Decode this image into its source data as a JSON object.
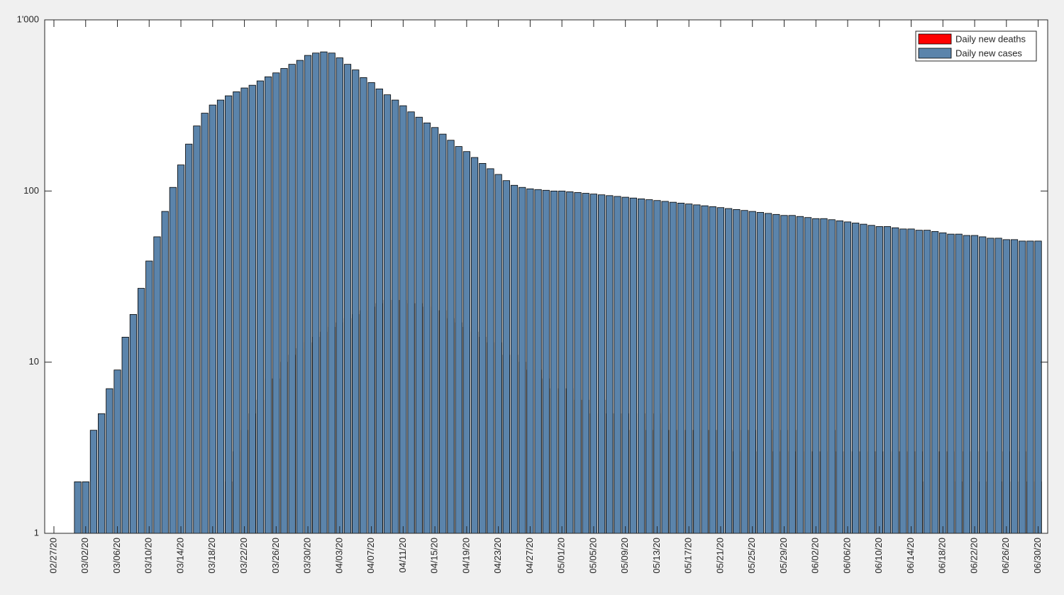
{
  "chart_data": {
    "type": "bar",
    "overlay": true,
    "log_scale_y": true,
    "legend": "northeast",
    "categories": [
      "02/27/20",
      null,
      null,
      null,
      "03/02/20",
      null,
      null,
      null,
      "03/06/20",
      null,
      null,
      null,
      "03/10/20",
      null,
      null,
      null,
      "03/14/20",
      null,
      null,
      null,
      "03/18/20",
      null,
      null,
      null,
      "03/22/20",
      null,
      null,
      null,
      "03/26/20",
      null,
      null,
      null,
      "03/30/20",
      null,
      null,
      null,
      "04/03/20",
      null,
      null,
      null,
      "04/07/20",
      null,
      null,
      null,
      "04/11/20",
      null,
      null,
      null,
      "04/15/20",
      null,
      null,
      null,
      "04/19/20",
      null,
      null,
      null,
      "04/23/20",
      null,
      null,
      null,
      "04/27/20",
      null,
      null,
      null,
      "05/01/20",
      null,
      null,
      null,
      "05/05/20",
      null,
      null,
      null,
      "05/09/20",
      null,
      null,
      null,
      "05/13/20",
      null,
      null,
      null,
      "05/17/20",
      null,
      null,
      null,
      "05/21/20",
      null,
      null,
      null,
      "05/25/20",
      null,
      null,
      null,
      "05/29/20",
      null,
      null,
      null,
      "06/02/20",
      null,
      null,
      null,
      "06/06/20",
      null,
      null,
      null,
      "06/10/20",
      null,
      null,
      null,
      "06/14/20",
      null,
      null,
      null,
      "06/18/20",
      null,
      null,
      null,
      "06/22/20",
      null,
      null,
      null,
      "06/26/20",
      null,
      null,
      null,
      "06/30/20"
    ],
    "series": [
      {
        "name": "Daily new deaths",
        "color": "#ff0000",
        "values": [
          null,
          null,
          null,
          null,
          null,
          null,
          null,
          null,
          null,
          null,
          null,
          null,
          null,
          null,
          null,
          null,
          null,
          null,
          null,
          null,
          null,
          null,
          2,
          3,
          4,
          5,
          6,
          8,
          8,
          10,
          11,
          12,
          13,
          14,
          15,
          16,
          17,
          18,
          19,
          20,
          21,
          22,
          23,
          23,
          23,
          22,
          22,
          21,
          20,
          20,
          18,
          17,
          16,
          15,
          14,
          13,
          13,
          11,
          11,
          10,
          9,
          9,
          8,
          7,
          7,
          7,
          6,
          6,
          5,
          6,
          5,
          5,
          5,
          4,
          5,
          4,
          5,
          4,
          4,
          4,
          4,
          4,
          4,
          4,
          4,
          4,
          3,
          4,
          4,
          3,
          4,
          3,
          4,
          3,
          4,
          3,
          3,
          3,
          4,
          3,
          3,
          3,
          3,
          3,
          3,
          3,
          3,
          3,
          3,
          3,
          2,
          3,
          3,
          3,
          2,
          3,
          3,
          2,
          3,
          2,
          3,
          2,
          3,
          2,
          2
        ]
      },
      {
        "name": "Daily new cases",
        "color": "#5b84ab",
        "values": [
          null,
          null,
          null,
          2,
          2,
          4,
          5,
          7,
          9,
          14,
          19,
          27,
          39,
          54,
          76,
          105,
          142,
          188,
          240,
          285,
          318,
          340,
          360,
          380,
          400,
          415,
          440,
          465,
          490,
          520,
          550,
          580,
          620,
          640,
          650,
          640,
          600,
          550,
          510,
          460,
          430,
          395,
          365,
          340,
          315,
          290,
          270,
          250,
          235,
          215,
          198,
          182,
          170,
          157,
          145,
          135,
          125,
          115,
          108,
          105,
          103,
          102,
          101,
          100,
          100,
          99,
          98,
          97,
          96,
          95,
          94,
          93,
          92,
          91,
          90,
          89,
          88,
          87,
          86,
          85,
          84,
          83,
          82,
          81,
          80,
          79,
          78,
          77,
          76,
          75,
          74,
          73,
          72,
          72,
          71,
          70,
          69,
          69,
          68,
          67,
          66,
          65,
          64,
          63,
          62,
          62,
          61,
          60,
          60,
          59,
          59,
          58,
          57,
          56,
          56,
          55,
          55,
          54,
          53,
          53,
          52,
          52,
          51,
          51,
          51
        ]
      }
    ],
    "ylim": [
      1,
      1000
    ],
    "yticks": [
      1,
      10,
      100,
      {
        "value": 1000,
        "label": "1'000"
      }
    ]
  }
}
